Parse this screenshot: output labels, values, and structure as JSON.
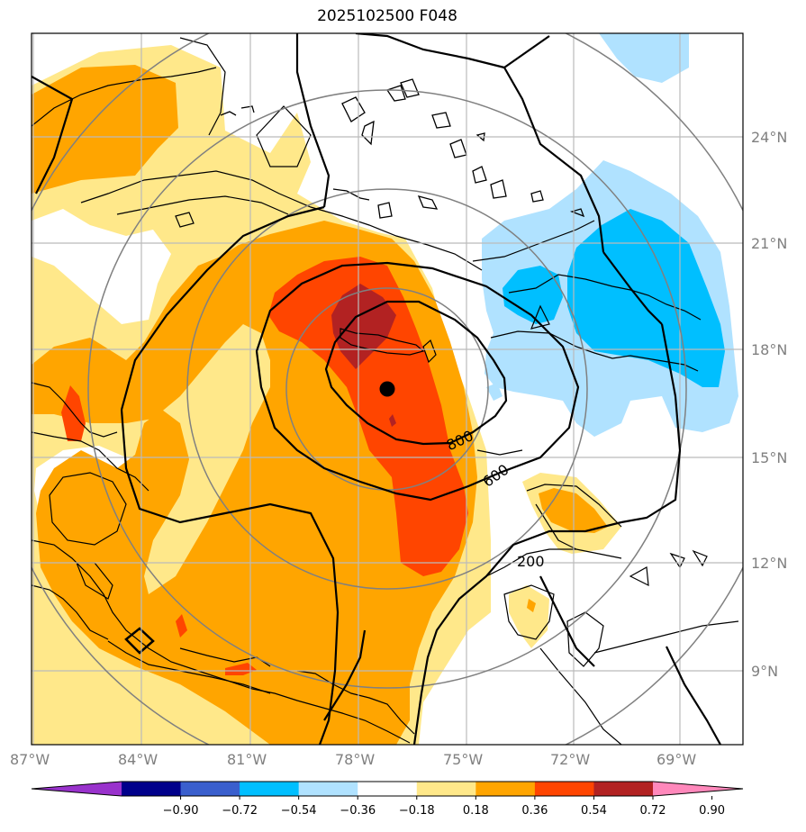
{
  "title": "2025102500 F048",
  "lon_ticks": [
    "87°W",
    "84°W",
    "81°W",
    "78°W",
    "75°W",
    "72°W",
    "69°W"
  ],
  "lat_ticks": [
    "24°N",
    "21°N",
    "18°N",
    "15°N",
    "12°N",
    "9°N"
  ],
  "contour_labels": [
    "800",
    "600",
    "200"
  ],
  "colorbar": {
    "labels": [
      "−0.90",
      "−0.72",
      "−0.54",
      "−0.36",
      "−0.18",
      "0.18",
      "0.36",
      "0.54",
      "0.72",
      "0.90"
    ],
    "colors": [
      "#9932cc",
      "#00008b",
      "#3a5fcd",
      "#00bfff",
      "#b0e2ff",
      "#ffffff",
      "#ffe88a",
      "#ffa500",
      "#ff4500",
      "#b22222",
      "#ff88bb"
    ]
  },
  "storm_center": {
    "lat": 16.8,
    "lon": -77.4
  }
}
